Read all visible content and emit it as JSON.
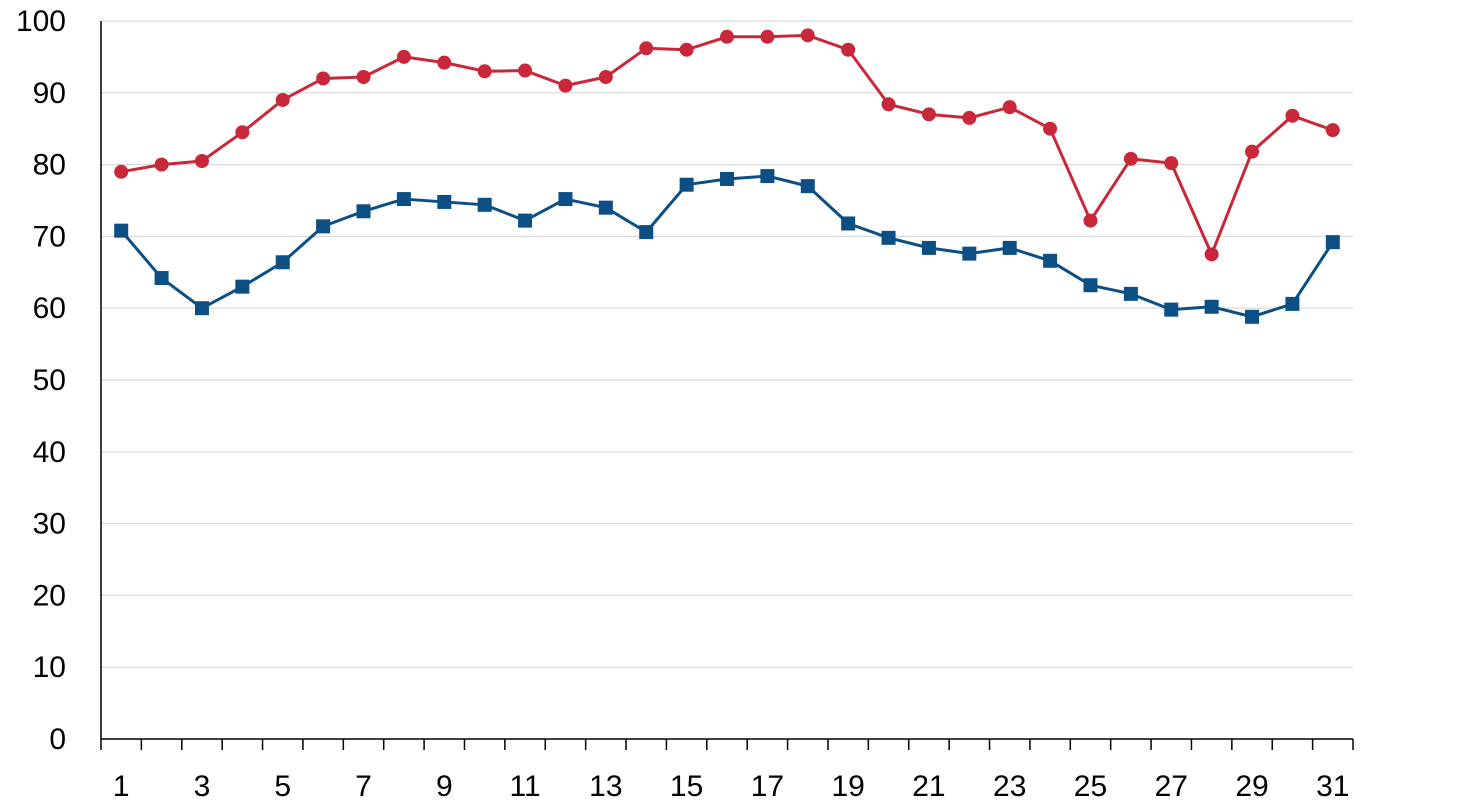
{
  "chart_data": {
    "type": "line",
    "title": "",
    "xlabel": "",
    "ylabel": "",
    "x": [
      1,
      2,
      3,
      4,
      5,
      6,
      7,
      8,
      9,
      10,
      11,
      12,
      13,
      14,
      15,
      16,
      17,
      18,
      19,
      20,
      21,
      22,
      23,
      24,
      25,
      26,
      27,
      28,
      29,
      30,
      31
    ],
    "x_tick_labels": [
      "1",
      "3",
      "5",
      "7",
      "9",
      "11",
      "13",
      "15",
      "17",
      "19",
      "21",
      "23",
      "25",
      "27",
      "29",
      "31"
    ],
    "y_tick_labels": [
      "0",
      "10",
      "20",
      "30",
      "40",
      "50",
      "60",
      "70",
      "80",
      "90",
      "100"
    ],
    "ylim": [
      0,
      100
    ],
    "grid": "horizontal",
    "legend": "none",
    "series": [
      {
        "color": "#c8283a",
        "marker": "circle",
        "values": [
          79,
          80,
          80.5,
          84.5,
          89,
          92,
          92.2,
          95,
          94.2,
          93,
          93.1,
          91,
          92.2,
          96.2,
          96,
          97.8,
          97.8,
          98,
          96,
          88.4,
          87,
          86.5,
          88,
          85,
          72.2,
          80.8,
          80.2,
          67.5,
          81.8,
          86.8,
          84.8
        ]
      },
      {
        "color": "#0b4f85",
        "marker": "square",
        "values": [
          70.8,
          64.2,
          60,
          63,
          66.4,
          71.4,
          73.5,
          75.2,
          74.8,
          74.4,
          72.2,
          75.2,
          74,
          70.6,
          77.2,
          78,
          78.4,
          77,
          71.8,
          69.8,
          68.4,
          67.6,
          68.4,
          66.6,
          63.2,
          62,
          59.8,
          60.2,
          58.8,
          60.6,
          69.2
        ]
      }
    ]
  }
}
